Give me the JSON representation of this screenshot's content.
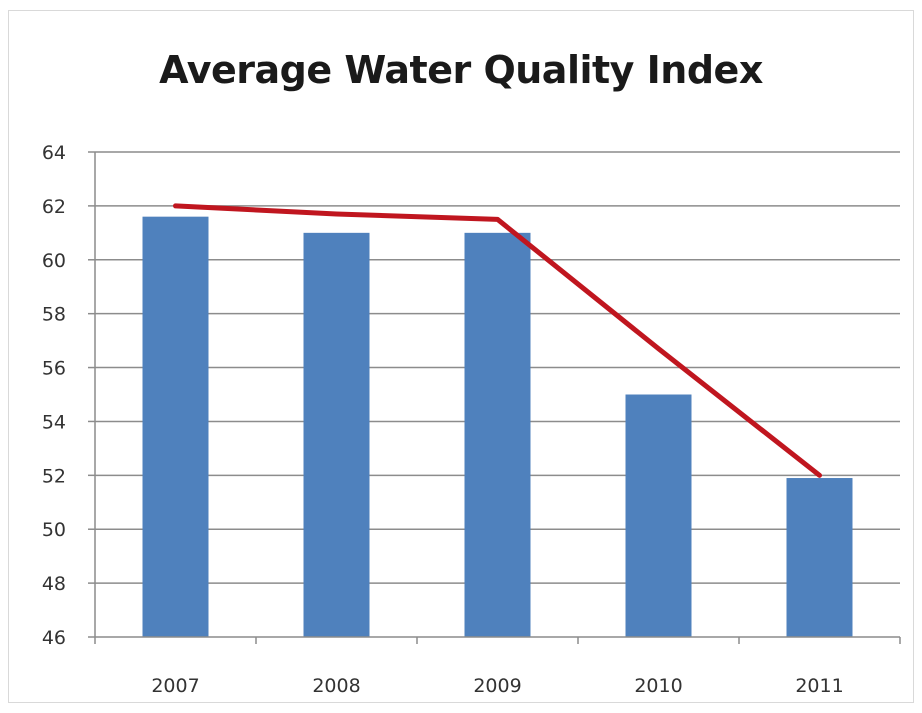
{
  "chart_data": {
    "type": "bar",
    "title": "Average Water Quality Index",
    "categories": [
      "2007",
      "2008",
      "2009",
      "2010",
      "2011"
    ],
    "values": [
      61.6,
      61.0,
      61.0,
      55.0,
      51.9
    ],
    "trend_line": [
      62.0,
      61.7,
      61.5,
      56.7,
      52.0
    ],
    "ylim": [
      46,
      64
    ],
    "yticks": [
      46,
      48,
      50,
      52,
      54,
      56,
      58,
      60,
      62,
      64
    ],
    "grid": true,
    "legend": "none",
    "colors": {
      "bar": "#4f81bd",
      "trend": "#c0161f",
      "grid": "#8c8c8c"
    }
  }
}
